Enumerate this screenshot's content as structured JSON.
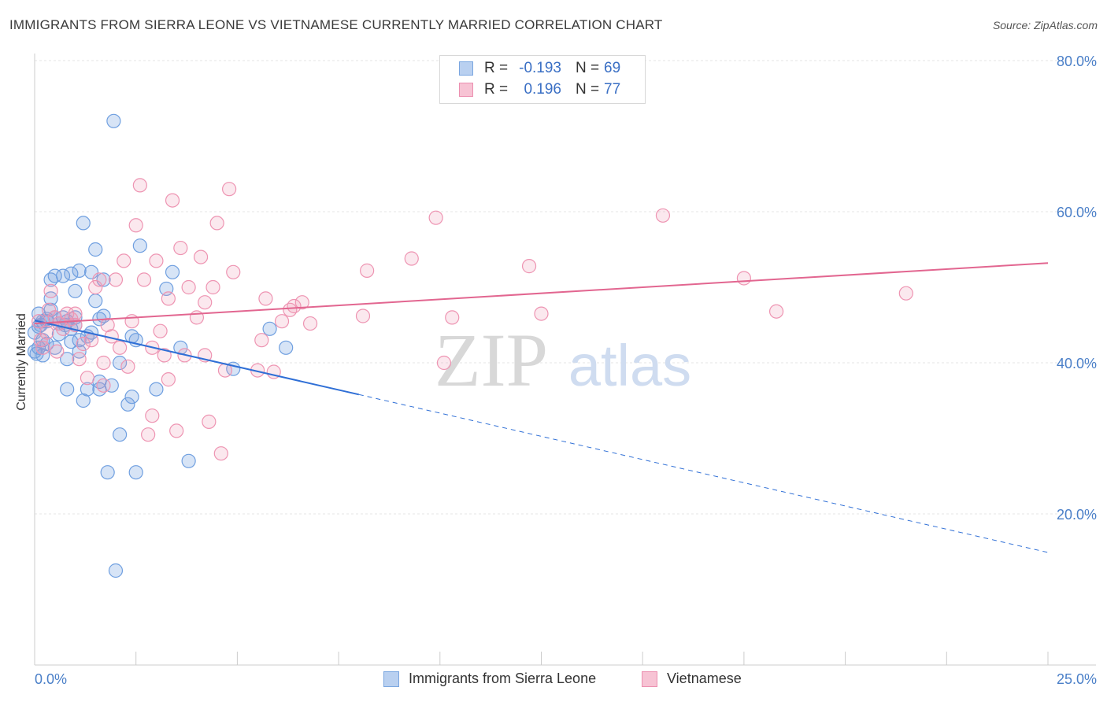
{
  "title": "IMMIGRANTS FROM SIERRA LEONE VS VIETNAMESE CURRENTLY MARRIED CORRELATION CHART",
  "source": "Source: ZipAtlas.com",
  "watermark": {
    "zip": "ZIP",
    "atlas": "atlas"
  },
  "legend": {
    "r_label": "R =",
    "n_label": "N =",
    "rows": [
      {
        "r": "-0.193",
        "n": "69",
        "color": "#7aa6e0",
        "fill": "#b9d0f0"
      },
      {
        "r": "0.196",
        "n": "77",
        "color": "#ec8fb0",
        "fill": "#f7c3d4"
      }
    ]
  },
  "bottom_legend": [
    "Immigrants from Sierra Leone",
    "Vietnamese"
  ],
  "colors": {
    "blue": "#6f9fe0",
    "blue_line": "#2f6fd6",
    "pink": "#ee94b2",
    "pink_line": "#e26690",
    "tick": "#4a7fc8",
    "grid": "#e4e4e4"
  },
  "chart_data": {
    "type": "scatter",
    "title": "IMMIGRANTS FROM SIERRA LEONE VS VIETNAMESE CURRENTLY MARRIED CORRELATION CHART",
    "xlabel": "",
    "ylabel": "Currently Married",
    "xlim": [
      0,
      25
    ],
    "ylim": [
      0,
      80
    ],
    "x_ticks": [
      "0.0%",
      "25.0%"
    ],
    "y_ticks": [
      "20.0%",
      "40.0%",
      "60.0%",
      "80.0%"
    ],
    "grid": true,
    "legend_position": "top-center",
    "series": [
      {
        "name": "Immigrants from Sierra Leone",
        "trend": {
          "x": [
            0,
            8
          ],
          "y": [
            45.6,
            35.8
          ],
          "dashed_extension": {
            "x": [
              8,
              25
            ],
            "y": [
              35.8,
              14.9
            ]
          }
        },
        "points": [
          [
            0.0,
            41.5
          ],
          [
            0.1,
            42.0
          ],
          [
            0.1,
            46.5
          ],
          [
            0.1,
            44.8
          ],
          [
            0.2,
            45.5
          ],
          [
            0.2,
            41.0
          ],
          [
            0.3,
            42.5
          ],
          [
            0.3,
            45.8
          ],
          [
            0.4,
            47.0
          ],
          [
            0.4,
            51.0
          ],
          [
            0.4,
            48.5
          ],
          [
            0.5,
            51.5
          ],
          [
            0.5,
            42.0
          ],
          [
            0.6,
            45.2
          ],
          [
            0.7,
            46.0
          ],
          [
            0.7,
            51.5
          ],
          [
            0.8,
            45.5
          ],
          [
            0.8,
            40.5
          ],
          [
            0.8,
            36.5
          ],
          [
            0.9,
            44.5
          ],
          [
            0.9,
            51.8
          ],
          [
            1.0,
            49.5
          ],
          [
            1.0,
            45.0
          ],
          [
            1.1,
            43.0
          ],
          [
            1.1,
            41.5
          ],
          [
            1.1,
            52.2
          ],
          [
            1.2,
            58.5
          ],
          [
            1.2,
            35.0
          ],
          [
            1.3,
            43.5
          ],
          [
            1.3,
            36.5
          ],
          [
            1.4,
            52.0
          ],
          [
            1.5,
            48.2
          ],
          [
            1.5,
            55.0
          ],
          [
            1.6,
            37.5
          ],
          [
            1.6,
            36.5
          ],
          [
            1.6,
            45.8
          ],
          [
            1.7,
            46.2
          ],
          [
            1.7,
            51.0
          ],
          [
            1.8,
            25.5
          ],
          [
            1.9,
            37.0
          ],
          [
            1.95,
            72.0
          ],
          [
            2.0,
            12.5
          ],
          [
            2.1,
            30.5
          ],
          [
            2.1,
            40.0
          ],
          [
            2.3,
            34.5
          ],
          [
            2.4,
            35.5
          ],
          [
            2.4,
            43.5
          ],
          [
            2.5,
            43.0
          ],
          [
            2.5,
            25.5
          ],
          [
            2.6,
            55.5
          ],
          [
            3.0,
            36.5
          ],
          [
            3.25,
            49.8
          ],
          [
            3.4,
            52.0
          ],
          [
            3.6,
            42.0
          ],
          [
            3.8,
            27.0
          ],
          [
            4.9,
            39.2
          ],
          [
            5.8,
            44.5
          ],
          [
            6.2,
            42.0
          ],
          [
            0.3,
            45.5
          ],
          [
            0.6,
            43.8
          ],
          [
            1.0,
            46.0
          ],
          [
            0.2,
            43.0
          ],
          [
            0.5,
            46.0
          ],
          [
            0.9,
            42.8
          ],
          [
            0.0,
            44.0
          ],
          [
            1.4,
            44.0
          ],
          [
            0.15,
            45.0
          ],
          [
            0.05,
            41.2
          ],
          [
            0.75,
            45.0
          ]
        ]
      },
      {
        "name": "Vietnamese",
        "trend": {
          "x": [
            0,
            25
          ],
          "y": [
            45.2,
            53.2
          ]
        },
        "points": [
          [
            0.1,
            45.5
          ],
          [
            0.2,
            42.0
          ],
          [
            0.3,
            44.0
          ],
          [
            0.4,
            49.5
          ],
          [
            0.5,
            46.0
          ],
          [
            0.6,
            45.2
          ],
          [
            0.7,
            44.5
          ],
          [
            0.8,
            46.5
          ],
          [
            0.9,
            45.8
          ],
          [
            1.0,
            46.5
          ],
          [
            1.1,
            40.5
          ],
          [
            1.2,
            42.5
          ],
          [
            1.3,
            38.0
          ],
          [
            1.4,
            43.0
          ],
          [
            1.5,
            50.0
          ],
          [
            1.6,
            51.0
          ],
          [
            1.7,
            37.0
          ],
          [
            1.7,
            40.0
          ],
          [
            1.8,
            45.0
          ],
          [
            1.9,
            43.5
          ],
          [
            2.0,
            51.0
          ],
          [
            2.1,
            42.0
          ],
          [
            2.2,
            53.5
          ],
          [
            2.3,
            39.5
          ],
          [
            2.4,
            45.5
          ],
          [
            2.5,
            58.2
          ],
          [
            2.6,
            63.5
          ],
          [
            2.7,
            51.0
          ],
          [
            2.8,
            30.5
          ],
          [
            2.9,
            42.0
          ],
          [
            3.0,
            53.5
          ],
          [
            3.1,
            44.2
          ],
          [
            3.2,
            41.0
          ],
          [
            3.3,
            48.5
          ],
          [
            3.4,
            61.5
          ],
          [
            3.5,
            31.0
          ],
          [
            3.6,
            55.2
          ],
          [
            3.7,
            41.0
          ],
          [
            3.8,
            50.0
          ],
          [
            4.0,
            46.0
          ],
          [
            4.1,
            54.0
          ],
          [
            4.2,
            48.0
          ],
          [
            4.3,
            32.2
          ],
          [
            4.4,
            50.0
          ],
          [
            4.5,
            58.5
          ],
          [
            4.6,
            28.0
          ],
          [
            4.7,
            39.0
          ],
          [
            4.8,
            63.0
          ],
          [
            4.9,
            52.0
          ],
          [
            5.5,
            39.0
          ],
          [
            5.6,
            43.0
          ],
          [
            5.7,
            48.5
          ],
          [
            5.9,
            38.8
          ],
          [
            6.1,
            45.5
          ],
          [
            6.3,
            47.0
          ],
          [
            6.4,
            47.5
          ],
          [
            6.6,
            48.0
          ],
          [
            6.8,
            45.2
          ],
          [
            8.1,
            46.2
          ],
          [
            8.2,
            52.2
          ],
          [
            9.3,
            53.8
          ],
          [
            9.9,
            59.2
          ],
          [
            10.1,
            40.0
          ],
          [
            10.3,
            46.0
          ],
          [
            12.2,
            52.8
          ],
          [
            12.5,
            46.5
          ],
          [
            15.5,
            59.5
          ],
          [
            17.5,
            51.2
          ],
          [
            18.3,
            46.8
          ],
          [
            21.5,
            49.2
          ],
          [
            0.15,
            43.0
          ],
          [
            0.35,
            47.0
          ],
          [
            1.0,
            45.0
          ],
          [
            0.55,
            41.5
          ],
          [
            2.9,
            33.0
          ],
          [
            3.3,
            37.8
          ],
          [
            4.2,
            41.0
          ]
        ]
      }
    ]
  }
}
